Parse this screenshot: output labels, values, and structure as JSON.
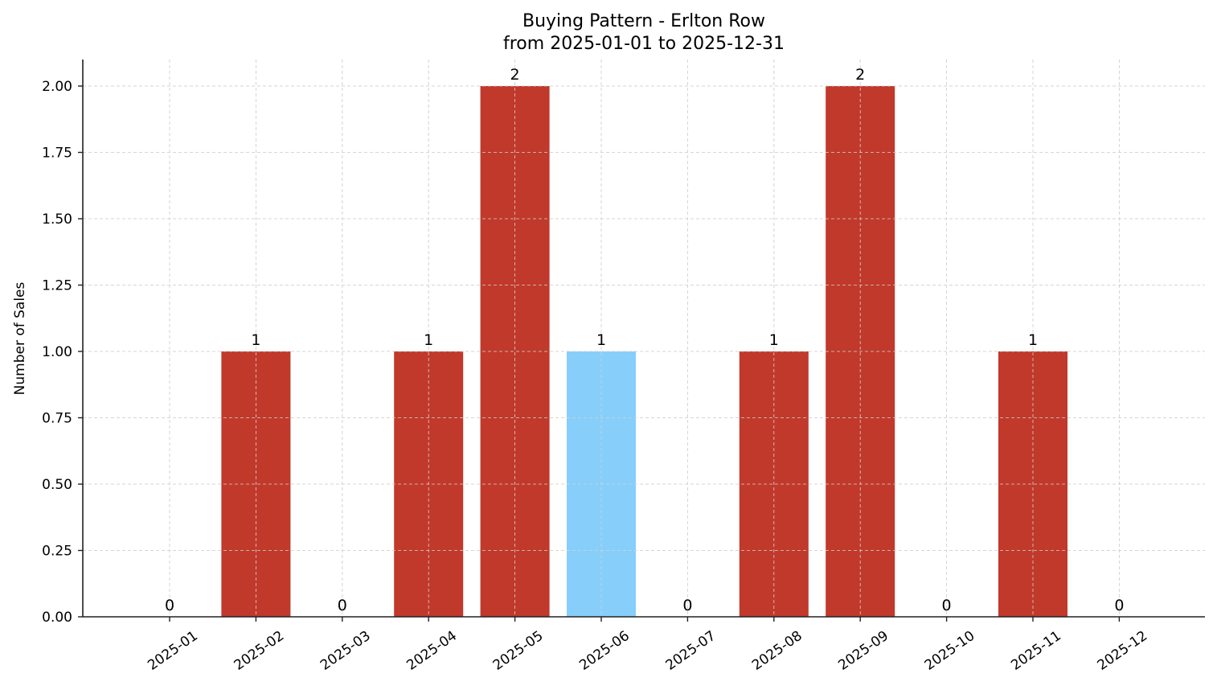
{
  "chart_data": {
    "type": "bar",
    "title": "Buying Pattern - Erlton Row",
    "subtitle": "from 2025-01-01 to 2025-12-31",
    "xlabel": "",
    "ylabel": "Number of Sales",
    "categories": [
      "2025-01",
      "2025-02",
      "2025-03",
      "2025-04",
      "2025-05",
      "2025-06",
      "2025-07",
      "2025-08",
      "2025-09",
      "2025-10",
      "2025-11",
      "2025-12"
    ],
    "values": [
      0,
      1,
      0,
      1,
      2,
      1,
      0,
      1,
      2,
      0,
      1,
      0
    ],
    "data_labels": [
      "0",
      "1",
      "0",
      "1",
      "2",
      "1",
      "0",
      "1",
      "2",
      "0",
      "1",
      "0"
    ],
    "highlight_index": 5,
    "colors": {
      "default": "#c0392b",
      "highlight": "#87cefa"
    },
    "ylim": [
      0,
      2.1
    ],
    "yticks": [
      0,
      0.25,
      0.5,
      0.75,
      1.0,
      1.25,
      1.5,
      1.75,
      2.0
    ],
    "ytick_labels": [
      "0.00",
      "0.25",
      "0.50",
      "0.75",
      "1.00",
      "1.25",
      "1.50",
      "1.75",
      "2.00"
    ],
    "grid": true,
    "legend": null,
    "xtick_rotation": 35
  }
}
